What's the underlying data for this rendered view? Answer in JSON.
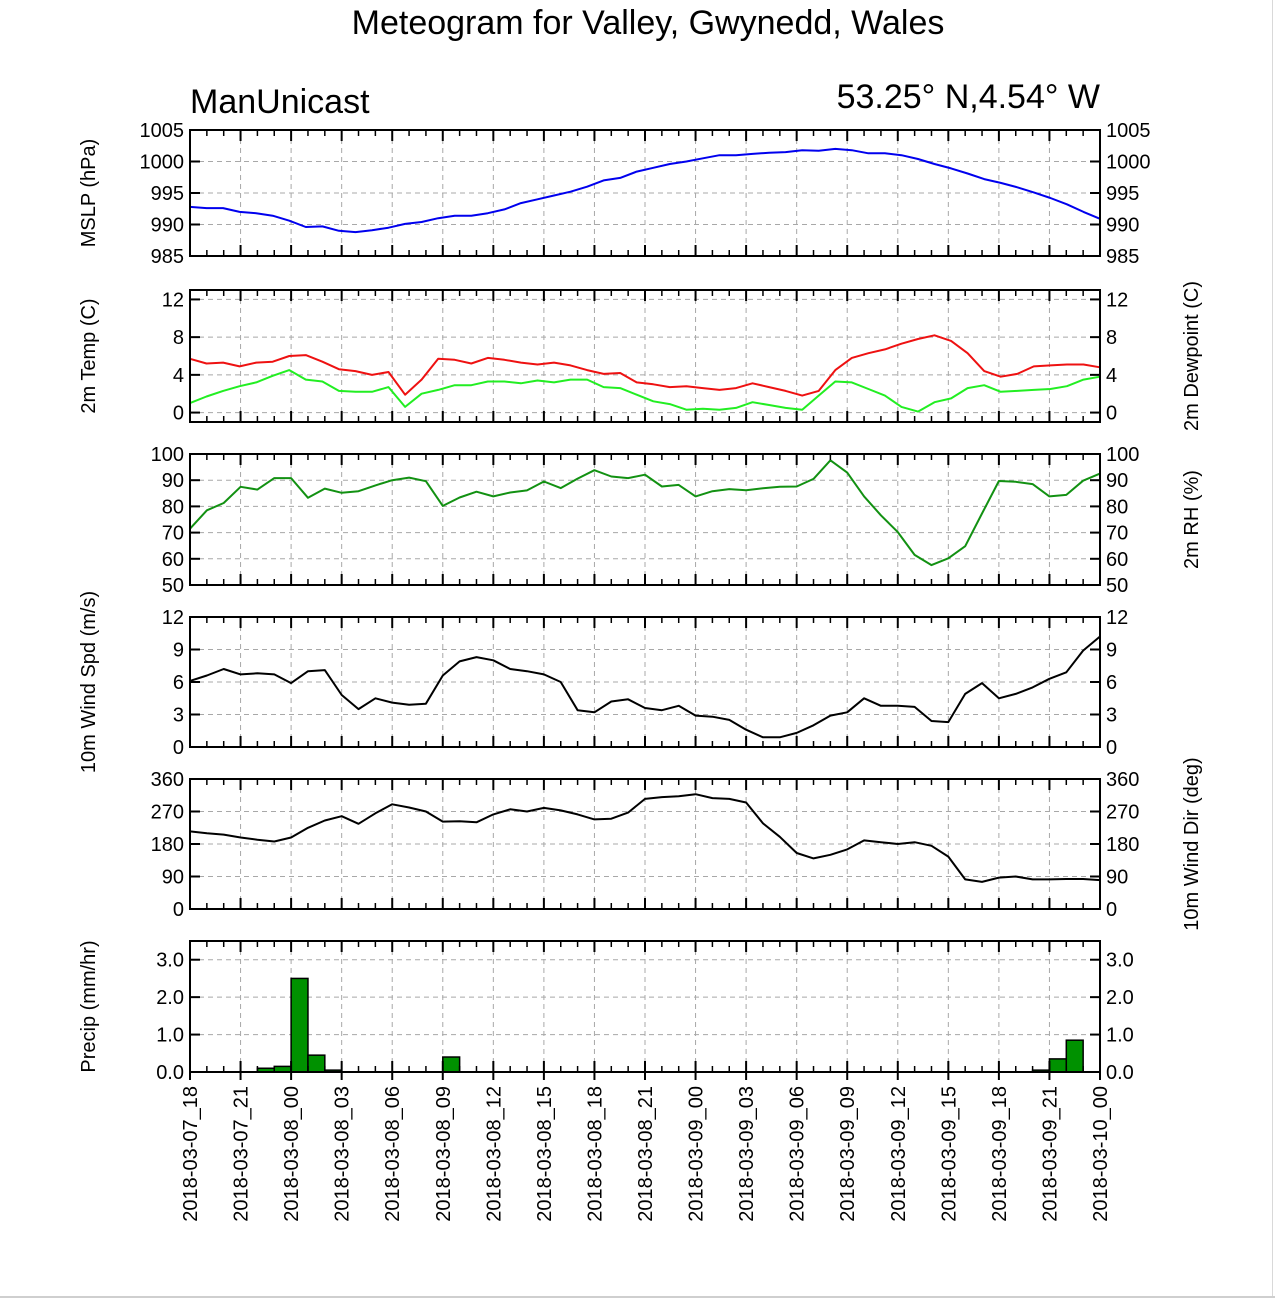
{
  "title": "Meteogram for Valley, Gwynedd, Wales",
  "left_label": "ManUnicast",
  "right_label": "53.25° N,4.54° W",
  "colors": {
    "mslp": "#0000ee",
    "temp": "#ee1111",
    "dewpoint": "#22ee22",
    "rh": "#129112",
    "wind": "#000000",
    "precip_fill": "#009100"
  },
  "chart_data": {
    "type": "line",
    "x_tick_labels": [
      "2018-03-07_18",
      "2018-03-07_21",
      "2018-03-08_00",
      "2018-03-08_03",
      "2018-03-08_06",
      "2018-03-08_09",
      "2018-03-08_12",
      "2018-03-08_15",
      "2018-03-08_18",
      "2018-03-08_21",
      "2018-03-09_00",
      "2018-03-09_03",
      "2018-03-09_06",
      "2018-03-09_09",
      "2018-03-09_12",
      "2018-03-09_15",
      "2018-03-09_18",
      "2018-03-09_21",
      "2018-03-10_00"
    ],
    "x_range_hours": [
      0,
      54
    ],
    "grid": true,
    "panels": [
      {
        "id": "mslp",
        "type": "line",
        "ylabel_left": "MSLP (hPa)",
        "ylabel_right": "",
        "ylim": [
          985,
          1005
        ],
        "yticks": [
          985,
          990,
          995,
          1000,
          1005
        ],
        "tick_decimals": 0,
        "series": [
          {
            "color_key": "mslp",
            "values": [
              992.8,
              992.6,
              992.6,
              992.0,
              991.8,
              991.4,
              990.6,
              989.6,
              989.7,
              989.0,
              988.8,
              989.1,
              989.5,
              990.1,
              990.4,
              991.0,
              991.4,
              991.4,
              991.8,
              992.4,
              993.4,
              994.0,
              994.6,
              995.2,
              996.0,
              997.0,
              997.4,
              998.4,
              999.0,
              999.6,
              1000.0,
              1000.5,
              1001.0,
              1001.0,
              1001.2,
              1001.4,
              1001.5,
              1001.8,
              1001.7,
              1002.0,
              1001.8,
              1001.3,
              1001.3,
              1001.0,
              1000.4,
              999.6,
              998.9,
              998.1,
              997.2,
              996.6,
              995.9,
              995.1,
              994.2,
              993.2,
              992.0,
              990.9
            ]
          }
        ]
      },
      {
        "id": "temp",
        "type": "line",
        "ylabel_left": "2m Temp (C)",
        "ylabel_right": "2m Dewpoint (C)",
        "ylim": [
          -1,
          13
        ],
        "yticks": [
          0,
          4,
          8,
          12
        ],
        "tick_decimals": 0,
        "series": [
          {
            "color_key": "temp",
            "values": [
              5.7,
              5.2,
              5.3,
              4.9,
              5.3,
              5.4,
              6.0,
              6.1,
              5.4,
              4.6,
              4.4,
              4.0,
              4.3,
              1.9,
              3.5,
              5.7,
              5.6,
              5.2,
              5.8,
              5.6,
              5.3,
              5.1,
              5.3,
              5.0,
              4.5,
              4.1,
              4.2,
              3.2,
              3.0,
              2.7,
              2.8,
              2.6,
              2.4,
              2.6,
              3.1,
              2.7,
              2.3,
              1.8,
              2.3,
              4.5,
              5.8,
              6.3,
              6.7,
              7.3,
              7.8,
              8.2,
              7.6,
              6.3,
              4.4,
              3.8,
              4.1,
              4.9,
              5.0,
              5.1,
              5.1,
              4.8
            ]
          },
          {
            "color_key": "dewpoint",
            "values": [
              1.0,
              1.7,
              2.3,
              2.8,
              3.2,
              3.9,
              4.5,
              3.5,
              3.3,
              2.3,
              2.2,
              2.2,
              2.7,
              0.6,
              2.0,
              2.4,
              2.9,
              2.9,
              3.3,
              3.3,
              3.1,
              3.4,
              3.2,
              3.5,
              3.5,
              2.7,
              2.6,
              1.9,
              1.2,
              0.9,
              0.3,
              0.4,
              0.3,
              0.5,
              1.1,
              0.8,
              0.5,
              0.3,
              1.8,
              3.3,
              3.2,
              2.5,
              1.8,
              0.6,
              0.1,
              1.1,
              1.5,
              2.6,
              2.9,
              2.2,
              2.3,
              2.4,
              2.5,
              2.8,
              3.5,
              3.8
            ]
          }
        ]
      },
      {
        "id": "rh",
        "type": "line",
        "ylabel_left": "",
        "ylabel_right": "2m RH (%)",
        "ylim": [
          50,
          100
        ],
        "yticks": [
          50,
          60,
          70,
          80,
          90,
          100
        ],
        "tick_decimals": 0,
        "series": [
          {
            "color_key": "rh",
            "values": [
              71.5,
              78.5,
              81.3,
              87.5,
              86.4,
              90.8,
              90.8,
              83.3,
              86.8,
              85.2,
              85.8,
              88.0,
              90.0,
              91.0,
              89.6,
              80.2,
              83.4,
              85.6,
              83.8,
              85.3,
              86.1,
              89.5,
              87.0,
              90.6,
              93.8,
              91.4,
              90.8,
              92.1,
              87.6,
              88.2,
              83.8,
              85.8,
              86.6,
              86.2,
              86.9,
              87.5,
              87.6,
              90.5,
              97.6,
              92.9,
              83.8,
              76.6,
              70.2,
              61.5,
              57.6,
              60.2,
              64.8,
              77.3,
              89.7,
              89.4,
              88.5,
              83.8,
              84.4,
              89.8,
              92.5
            ]
          }
        ]
      },
      {
        "id": "wspd",
        "type": "line",
        "ylabel_left": "10m Wind Spd (m/s)",
        "ylabel_right": "",
        "ylim": [
          0,
          12
        ],
        "yticks": [
          0,
          3,
          6,
          9,
          12
        ],
        "tick_decimals": 0,
        "series": [
          {
            "color_key": "wind",
            "values": [
              6.1,
              6.6,
              7.2,
              6.7,
              6.8,
              6.7,
              5.9,
              7.0,
              7.1,
              4.8,
              3.5,
              4.5,
              4.1,
              3.9,
              4.0,
              6.6,
              7.9,
              8.3,
              8.0,
              7.2,
              7.0,
              6.7,
              6.0,
              3.4,
              3.2,
              4.2,
              4.4,
              3.6,
              3.4,
              3.8,
              2.9,
              2.8,
              2.5,
              1.6,
              0.9,
              0.9,
              1.3,
              2.0,
              2.9,
              3.2,
              4.5,
              3.8,
              3.8,
              3.7,
              2.4,
              2.3,
              4.9,
              5.9,
              4.5,
              4.9,
              5.5,
              6.3,
              6.9,
              8.9,
              10.2
            ]
          }
        ]
      },
      {
        "id": "wdir",
        "type": "line",
        "ylabel_left": "",
        "ylabel_right": "10m Wind Dir (deg)",
        "ylim": [
          0,
          360
        ],
        "yticks": [
          0,
          90,
          180,
          270,
          360
        ],
        "tick_decimals": 0,
        "series": [
          {
            "color_key": "wind",
            "values": [
              215,
              210,
              206,
              198,
              192,
              187,
              198,
              225,
              245,
              257,
              236,
              265,
              290,
              281,
              270,
              242,
              243,
              240,
              262,
              276,
              270,
              280,
              273,
              262,
              248,
              250,
              267,
              305,
              310,
              312,
              318,
              307,
              305,
              295,
              237,
              200,
              155,
              140,
              150,
              165,
              190,
              185,
              180,
              185,
              175,
              145,
              82,
              75,
              87,
              90,
              82,
              82,
              83,
              83,
              80
            ]
          }
        ]
      },
      {
        "id": "precip",
        "type": "bar",
        "ylabel_left": "Precip (mm/hr)",
        "ylabel_right": "",
        "ylim": [
          0,
          3.5
        ],
        "yticks": [
          0.0,
          1.0,
          2.0,
          3.0
        ],
        "tick_decimals": 1,
        "bars": [
          {
            "hour": 5,
            "value": 0.1
          },
          {
            "hour": 6,
            "value": 0.15
          },
          {
            "hour": 7,
            "value": 2.5
          },
          {
            "hour": 8,
            "value": 0.45
          },
          {
            "hour": 9,
            "value": 0.05
          },
          {
            "hour": 16,
            "value": 0.4
          },
          {
            "hour": 51,
            "value": 0.05
          },
          {
            "hour": 52,
            "value": 0.35
          },
          {
            "hour": 53,
            "value": 0.85
          }
        ]
      }
    ]
  }
}
